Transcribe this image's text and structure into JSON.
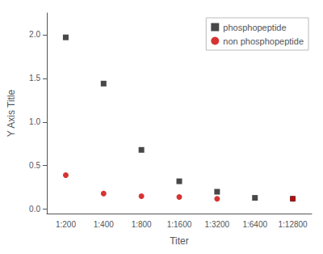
{
  "chart_data": {
    "type": "scatter",
    "xlabel": "Titer",
    "ylabel": "Y Axis Title",
    "categories": [
      "1:200",
      "1:400",
      "1:800",
      "1:1600",
      "1:3200",
      "1:6400",
      "1:12800"
    ],
    "series": [
      {
        "name": "phosphopeptide",
        "color": "#1a1a1a",
        "marker": "square",
        "values": [
          1.97,
          1.44,
          0.68,
          0.32,
          0.2,
          0.13,
          0.12
        ]
      },
      {
        "name": "non phosphopeptide",
        "color": "#cc0000",
        "marker": "circle",
        "values": [
          0.39,
          0.18,
          0.15,
          0.14,
          0.12,
          null,
          0.12
        ]
      }
    ],
    "ylim": [
      -0.05,
      2.25
    ],
    "yticks": [
      {
        "value": 0,
        "label": "0.0"
      },
      {
        "value": 0.5,
        "label": "0.5"
      },
      {
        "value": 1,
        "label": "1.0"
      },
      {
        "value": 1.5,
        "label": "1.5"
      },
      {
        "value": 2,
        "label": "2.0"
      }
    ],
    "legend": "upper right",
    "grid": false
  }
}
